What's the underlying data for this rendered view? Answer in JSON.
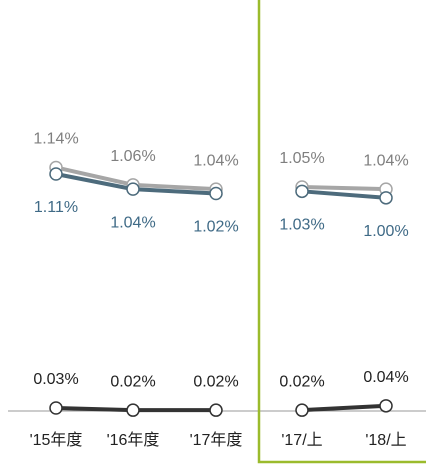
{
  "chart_data": {
    "type": "line",
    "categories": [
      "'15年度",
      "'16年度",
      "'17年度",
      "'17/上",
      "'18/上"
    ],
    "divider_before": 3,
    "ylim": [
      0,
      1.9
    ],
    "series": [
      {
        "color": "#a6a6a6",
        "label_color": "#7f7f7f",
        "label_position": "above",
        "values": [
          1.14,
          1.06,
          1.04,
          1.05,
          1.04
        ],
        "value_labels": [
          "1.14%",
          "1.06%",
          "1.04%",
          "1.05%",
          "1.04%"
        ]
      },
      {
        "color": "#4d6b7c",
        "label_color": "#3f6a86",
        "label_position": "below",
        "values": [
          1.11,
          1.04,
          1.02,
          1.03,
          1.0
        ],
        "value_labels": [
          "1.11%",
          "1.04%",
          "1.02%",
          "1.03%",
          "1.00%"
        ]
      },
      {
        "color": "#333333",
        "label_color": "#222222",
        "label_position": "above",
        "values": [
          0.03,
          0.02,
          0.02,
          0.02,
          0.04
        ],
        "value_labels": [
          "0.03%",
          "0.02%",
          "0.02%",
          "0.02%",
          "0.04%"
        ]
      }
    ]
  }
}
